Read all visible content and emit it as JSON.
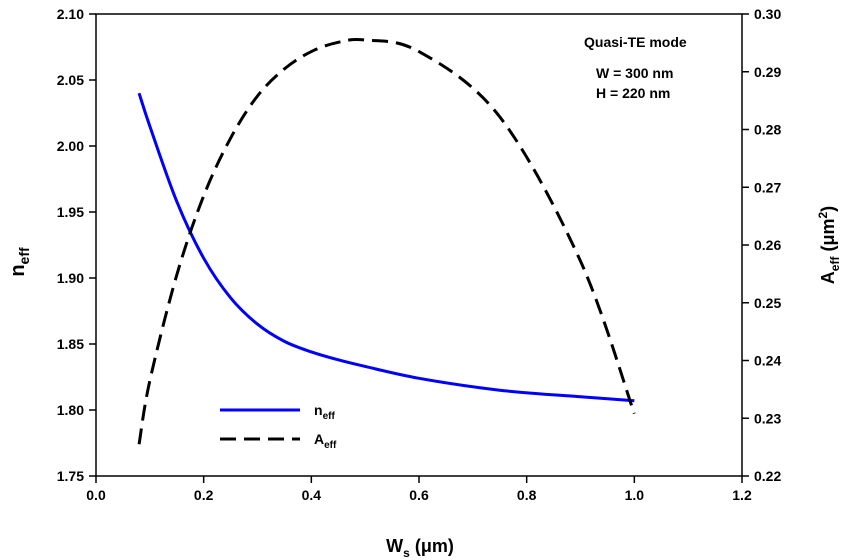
{
  "chart_data": {
    "type": "line",
    "x": [
      0.08,
      0.1,
      0.15,
      0.2,
      0.25,
      0.3,
      0.35,
      0.4,
      0.45,
      0.5,
      0.6,
      0.75,
      0.9,
      1.0
    ],
    "series": [
      {
        "name": "n",
        "subscript": "eff",
        "axis": "left",
        "style": "solid",
        "color": "#0000ff",
        "values": [
          2.04,
          2.015,
          1.958,
          1.915,
          1.885,
          1.865,
          1.852,
          1.844,
          1.838,
          1.833,
          1.824,
          1.815,
          1.81,
          1.807
        ]
      },
      {
        "name": "A",
        "subscript": "eff",
        "axis": "right",
        "style": "dashed",
        "color": "#000000",
        "values": [
          0.2255,
          0.2365,
          0.2548,
          0.2685,
          0.2785,
          0.2858,
          0.2905,
          0.2935,
          0.2951,
          0.2955,
          0.2935,
          0.2822,
          0.2572,
          0.2308
        ]
      }
    ],
    "xlim": [
      0.0,
      1.2
    ],
    "ylim_left": [
      1.75,
      2.1
    ],
    "ylim_right": [
      0.22,
      0.3
    ],
    "x_ticks": [
      "0.0",
      "0.2",
      "0.4",
      "0.6",
      "0.8",
      "1.0",
      "1.2"
    ],
    "y_left_ticks": [
      "1.75",
      "1.80",
      "1.85",
      "1.90",
      "1.95",
      "2.00",
      "2.05",
      "2.10"
    ],
    "y_right_ticks": [
      "0.22",
      "0.23",
      "0.24",
      "0.25",
      "0.26",
      "0.27",
      "0.28",
      "0.29",
      "0.30"
    ],
    "xlabel": {
      "main": "W",
      "sub": "s",
      "unit": " (μm)"
    },
    "ylabel_left": {
      "main": "n",
      "sub": "eff"
    },
    "ylabel_right": {
      "main": "A",
      "sub": "eff",
      "unit": " (μm",
      "sup": "2",
      "close": ")"
    },
    "annotations": [
      "Quasi-TE mode",
      "W = 300 nm",
      "H  = 220 nm"
    ],
    "legend_placement": "bottom-left",
    "grid": false
  }
}
